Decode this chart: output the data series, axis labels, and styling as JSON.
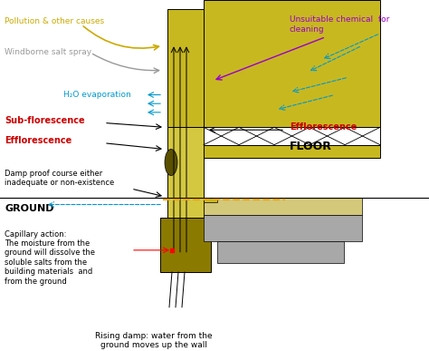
{
  "bg_color": "#ffffff",
  "wall_color": "#c8b820",
  "wall_light_color": "#d4c840",
  "wall_dark_color": "#8b7a00",
  "floor_color": "#c8b820",
  "concrete_color": "#a8a8a8",
  "sand_color": "#d4c87a",
  "labels": {
    "pollution": "Pollution & other causes",
    "windborne": "Windborne salt spray",
    "h2o": "H₂O evaporation",
    "subflorescence": "Sub-florescence",
    "efflorescence_left": "Efflorescence",
    "damp_proof": "Damp proof course either\ninadequate or non-existence",
    "ground": "GROUND",
    "capillary": "Capillary action:\nThe moisture from the\nground will dissolve the\nsoluble salts from the\nbuilding materials  and\nfrom the ground",
    "rising_damp": "Rising damp: water from the\nground moves up the wall",
    "unsuitable": "Unsuitable chemical  for\ncleaning",
    "efflorescence_right": "Efflorescence",
    "floor": "FLOOR"
  },
  "colors": {
    "pollution": "#ccaa00",
    "windborne": "#999999",
    "h2o": "#0099cc",
    "subflorescence": "#cc0000",
    "efflorescence_left": "#cc0000",
    "damp_proof": "#000000",
    "ground": "#000000",
    "capillary": "#000000",
    "rising_damp": "#000000",
    "unsuitable": "#9900cc",
    "efflorescence_right": "#cc0000",
    "floor": "#000000"
  }
}
